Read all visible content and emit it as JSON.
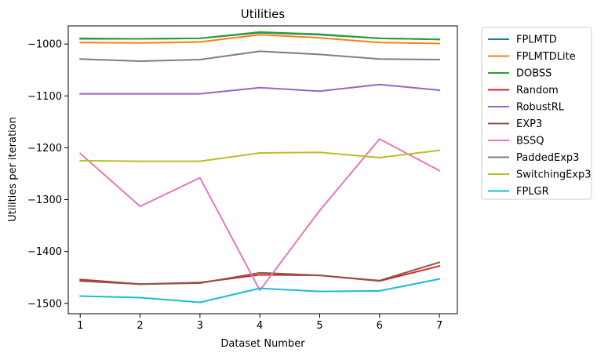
{
  "chart_data": {
    "type": "line",
    "title": "Utilities",
    "xlabel": "Dataset Number",
    "ylabel": "Utilities per iteration",
    "x": [
      1,
      2,
      3,
      4,
      5,
      6,
      7
    ],
    "xlim": [
      0.8,
      7.3
    ],
    "ylim": [
      -1520,
      -965
    ],
    "yticks": [
      -1000,
      -1100,
      -1200,
      -1300,
      -1400,
      -1500
    ],
    "ytick_labels": [
      "−1000",
      "−1100",
      "−1200",
      "−1300",
      "−1400",
      "−1500"
    ],
    "xtick_labels": [
      "1",
      "2",
      "3",
      "4",
      "5",
      "6",
      "7"
    ],
    "grid": false,
    "legend_position": "outside-right",
    "series": [
      {
        "name": "FPLMTD",
        "color": "#1f77b4",
        "values": [
          -990,
          -990,
          -989,
          -978,
          -982,
          -989,
          -991
        ]
      },
      {
        "name": "FPLMTDLite",
        "color": "#ff7f0e",
        "values": [
          -997,
          -998,
          -996,
          -982,
          -988,
          -997,
          -999
        ]
      },
      {
        "name": "DOBSS",
        "color": "#2ca02c",
        "values": [
          -989,
          -990,
          -989,
          -977,
          -981,
          -989,
          -991
        ]
      },
      {
        "name": "Random",
        "color": "#d62728",
        "values": [
          -1454,
          -1463,
          -1460,
          -1445,
          -1446,
          -1457,
          -1428
        ]
      },
      {
        "name": "RobustRL",
        "color": "#9467bd",
        "values": [
          -1096,
          -1096,
          -1096,
          -1084,
          -1091,
          -1078,
          -1089
        ]
      },
      {
        "name": "EXP3",
        "color": "#8c564b",
        "values": [
          -1457,
          -1463,
          -1461,
          -1441,
          -1446,
          -1456,
          -1421
        ]
      },
      {
        "name": "BSSQ",
        "color": "#e377c2",
        "values": [
          -1211,
          -1313,
          -1258,
          -1475,
          -1321,
          -1183,
          -1244
        ]
      },
      {
        "name": "PaddedExp3",
        "color": "#7f7f7f",
        "values": [
          -1029,
          -1033,
          -1030,
          -1014,
          -1020,
          -1029,
          -1030
        ]
      },
      {
        "name": "SwitchingExp3",
        "color": "#bcbd22",
        "values": [
          -1225,
          -1226,
          -1226,
          -1210,
          -1209,
          -1219,
          -1205
        ]
      },
      {
        "name": "FPLGR",
        "color": "#17becf",
        "values": [
          -1486,
          -1489,
          -1498,
          -1471,
          -1477,
          -1476,
          -1453
        ]
      }
    ]
  }
}
